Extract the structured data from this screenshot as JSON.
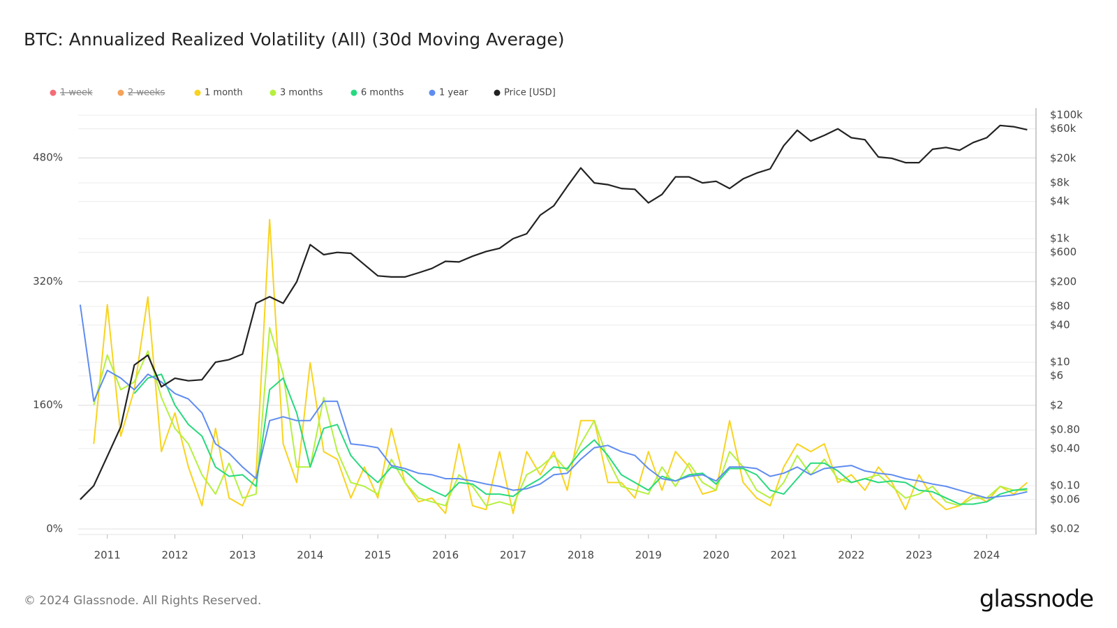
{
  "chart_data": {
    "type": "line",
    "title": "BTC: Annualized Realized Volatility (All) (30d Moving Average)",
    "footer": "© 2024 Glassnode. All Rights Reserved.",
    "brand": "glassnode",
    "log_y2": true,
    "grid": true,
    "legend": "top-left",
    "x": [
      2010.6,
      2010.8,
      2011.0,
      2011.2,
      2011.4,
      2011.6,
      2011.8,
      2012.0,
      2012.2,
      2012.4,
      2012.6,
      2012.8,
      2013.0,
      2013.2,
      2013.4,
      2013.6,
      2013.8,
      2014.0,
      2014.2,
      2014.4,
      2014.6,
      2014.8,
      2015.0,
      2015.2,
      2015.4,
      2015.6,
      2015.8,
      2016.0,
      2016.2,
      2016.4,
      2016.6,
      2016.8,
      2017.0,
      2017.2,
      2017.4,
      2017.6,
      2017.8,
      2018.0,
      2018.2,
      2018.4,
      2018.6,
      2018.8,
      2019.0,
      2019.2,
      2019.4,
      2019.6,
      2019.8,
      2020.0,
      2020.2,
      2020.4,
      2020.6,
      2020.8,
      2021.0,
      2021.2,
      2021.4,
      2021.6,
      2021.8,
      2022.0,
      2022.2,
      2022.4,
      2022.6,
      2022.8,
      2023.0,
      2023.2,
      2023.4,
      2023.6,
      2023.8,
      2024.0,
      2024.2,
      2024.4,
      2024.6
    ],
    "xlim": [
      2010.57,
      2024.73
    ],
    "xticks": [
      2011,
      2012,
      2013,
      2014,
      2015,
      2016,
      2017,
      2018,
      2019,
      2020,
      2021,
      2022,
      2023,
      2024
    ],
    "ylim": [
      0,
      535
    ],
    "yticks": [
      {
        "value": 0,
        "label": "0%"
      },
      {
        "value": 160,
        "label": "160%"
      },
      {
        "value": 320,
        "label": "320%"
      },
      {
        "value": 480,
        "label": "480%"
      }
    ],
    "y2lim": [
      0.02,
      100000
    ],
    "y2ticks": [
      {
        "value": 100000,
        "label": "$100k"
      },
      {
        "value": 60000,
        "label": "$60k"
      },
      {
        "value": 20000,
        "label": "$20k"
      },
      {
        "value": 8000,
        "label": "$8k"
      },
      {
        "value": 4000,
        "label": "$4k"
      },
      {
        "value": 1000,
        "label": "$1k"
      },
      {
        "value": 600,
        "label": "$600"
      },
      {
        "value": 200,
        "label": "$200"
      },
      {
        "value": 80,
        "label": "$80"
      },
      {
        "value": 40,
        "label": "$40"
      },
      {
        "value": 10,
        "label": "$10"
      },
      {
        "value": 6,
        "label": "$6"
      },
      {
        "value": 2,
        "label": "$2"
      },
      {
        "value": 0.8,
        "label": "$0.80"
      },
      {
        "value": 0.4,
        "label": "$0.40"
      },
      {
        "value": 0.1,
        "label": "$0.10"
      },
      {
        "value": 0.06,
        "label": "$0.06"
      },
      {
        "value": 0.02,
        "label": "$0.02"
      }
    ],
    "series": [
      {
        "name": "1 week",
        "color": "#f26d78",
        "hidden": true
      },
      {
        "name": "2 weeks",
        "color": "#f5a25a",
        "hidden": true
      },
      {
        "name": "1 month",
        "color": "#f8d320",
        "values": [
          null,
          110,
          290,
          120,
          180,
          300,
          100,
          150,
          80,
          30,
          130,
          40,
          30,
          70,
          400,
          110,
          60,
          215,
          100,
          90,
          40,
          80,
          40,
          130,
          60,
          35,
          40,
          20,
          110,
          30,
          25,
          100,
          20,
          100,
          70,
          100,
          50,
          140,
          140,
          60,
          60,
          40,
          100,
          50,
          100,
          80,
          45,
          50,
          140,
          60,
          40,
          30,
          80,
          110,
          100,
          110,
          60,
          70,
          50,
          80,
          60,
          25,
          70,
          40,
          25,
          30,
          45,
          35,
          55,
          45,
          60
        ]
      },
      {
        "name": "3 months",
        "color": "#b5f03f",
        "values": [
          null,
          160,
          225,
          180,
          190,
          230,
          170,
          130,
          110,
          70,
          45,
          85,
          40,
          45,
          260,
          200,
          80,
          80,
          170,
          100,
          60,
          55,
          45,
          90,
          60,
          40,
          35,
          30,
          70,
          55,
          30,
          35,
          30,
          70,
          80,
          95,
          75,
          110,
          140,
          90,
          55,
          50,
          45,
          80,
          55,
          85,
          60,
          50,
          100,
          80,
          50,
          40,
          60,
          95,
          70,
          90,
          65,
          60,
          65,
          70,
          55,
          40,
          45,
          55,
          35,
          30,
          40,
          40,
          55,
          50,
          50
        ]
      },
      {
        "name": "6 months",
        "color": "#27d97e",
        "values": [
          null,
          null,
          null,
          null,
          175,
          195,
          200,
          160,
          135,
          120,
          80,
          68,
          70,
          55,
          180,
          195,
          150,
          80,
          130,
          135,
          95,
          75,
          60,
          80,
          75,
          60,
          50,
          42,
          60,
          58,
          45,
          45,
          42,
          55,
          65,
          80,
          78,
          100,
          115,
          95,
          70,
          60,
          50,
          68,
          62,
          70,
          72,
          58,
          78,
          78,
          70,
          50,
          45,
          65,
          85,
          85,
          75,
          60,
          65,
          60,
          62,
          60,
          50,
          48,
          40,
          32,
          32,
          35,
          45,
          50,
          52
        ]
      },
      {
        "name": "1 year",
        "color": "#5f8cf0",
        "values": [
          290,
          165,
          205,
          195,
          180,
          200,
          190,
          175,
          168,
          150,
          110,
          98,
          80,
          65,
          140,
          145,
          140,
          140,
          165,
          165,
          110,
          108,
          105,
          82,
          78,
          72,
          70,
          65,
          65,
          62,
          58,
          55,
          50,
          52,
          58,
          70,
          72,
          90,
          105,
          108,
          100,
          95,
          78,
          65,
          62,
          68,
          70,
          62,
          80,
          80,
          78,
          68,
          72,
          80,
          70,
          78,
          80,
          82,
          75,
          72,
          70,
          65,
          62,
          58,
          55,
          50,
          45,
          40,
          42,
          44,
          48
        ]
      },
      {
        "name": "Price [USD]",
        "color": "#222222",
        "axis": "y2",
        "values": [
          0.06,
          0.1,
          0.3,
          0.9,
          9,
          13,
          4,
          5.5,
          5,
          5.2,
          10,
          11,
          13.5,
          90,
          115,
          90,
          200,
          800,
          550,
          600,
          580,
          380,
          250,
          240,
          240,
          280,
          330,
          430,
          420,
          520,
          620,
          700,
          1000,
          1200,
          2400,
          3400,
          7000,
          14000,
          8000,
          7500,
          6500,
          6300,
          3800,
          5200,
          10000,
          10000,
          8000,
          8500,
          6500,
          9300,
          11500,
          13500,
          32000,
          57000,
          38000,
          47000,
          60000,
          43000,
          40000,
          21000,
          20000,
          17000,
          17000,
          28000,
          30000,
          27000,
          36000,
          43000,
          68000,
          65000,
          58000
        ]
      }
    ]
  }
}
